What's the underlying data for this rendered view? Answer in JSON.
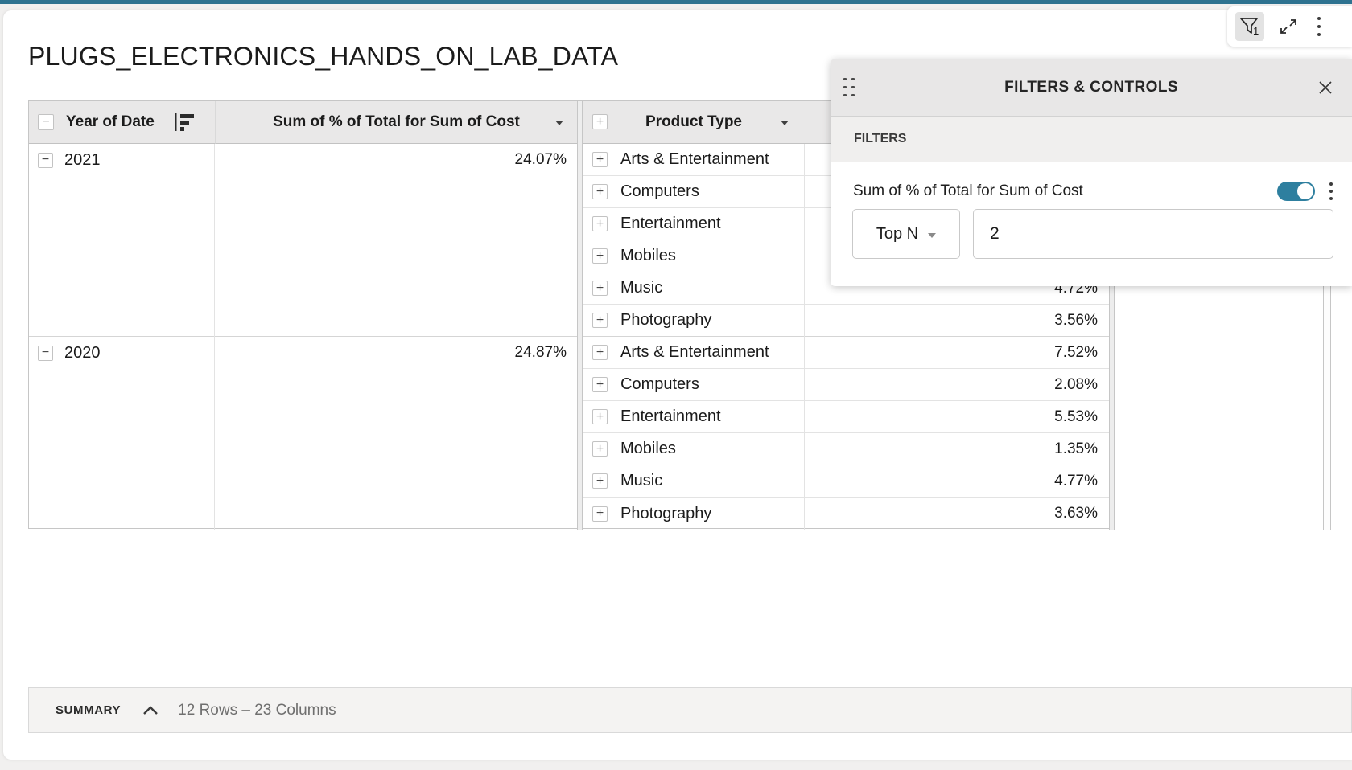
{
  "title": "PLUGS_ELECTRONICS_HANDS_ON_LAB_DATA",
  "toolbar": {
    "filter_icon": "funnel-icon",
    "filter_badge": "1",
    "expand_icon": "expand-icon",
    "menu_icon": "kebab-menu-icon"
  },
  "table": {
    "columns": {
      "year": "Year of Date",
      "measure": "Sum of % of Total for Sum of Cost",
      "product": "Product Type"
    },
    "groups": [
      {
        "year": "2021",
        "total": "24.07%",
        "rows": [
          {
            "type": "Arts & Entertainment",
            "value": ""
          },
          {
            "type": "Computers",
            "value": ""
          },
          {
            "type": "Entertainment",
            "value": ""
          },
          {
            "type": "Mobiles",
            "value": ""
          },
          {
            "type": "Music",
            "value": "4.72%"
          },
          {
            "type": "Photography",
            "value": "3.56%"
          }
        ]
      },
      {
        "year": "2020",
        "total": "24.87%",
        "rows": [
          {
            "type": "Arts & Entertainment",
            "value": "7.52%"
          },
          {
            "type": "Computers",
            "value": "2.08%"
          },
          {
            "type": "Entertainment",
            "value": "5.53%"
          },
          {
            "type": "Mobiles",
            "value": "1.35%"
          },
          {
            "type": "Music",
            "value": "4.77%"
          },
          {
            "type": "Photography",
            "value": "3.63%"
          }
        ]
      }
    ]
  },
  "filters_panel": {
    "title": "FILTERS & CONTROLS",
    "section_label": "FILTERS",
    "filter_name": "Sum of % of Total for Sum of Cost",
    "toggle_on": true,
    "operator": "Top N",
    "value": "2"
  },
  "summary": {
    "label": "SUMMARY",
    "text": "12 Rows – 23 Columns"
  },
  "colors": {
    "accent": "#2e7390",
    "toggle": "#2e7f9f"
  }
}
